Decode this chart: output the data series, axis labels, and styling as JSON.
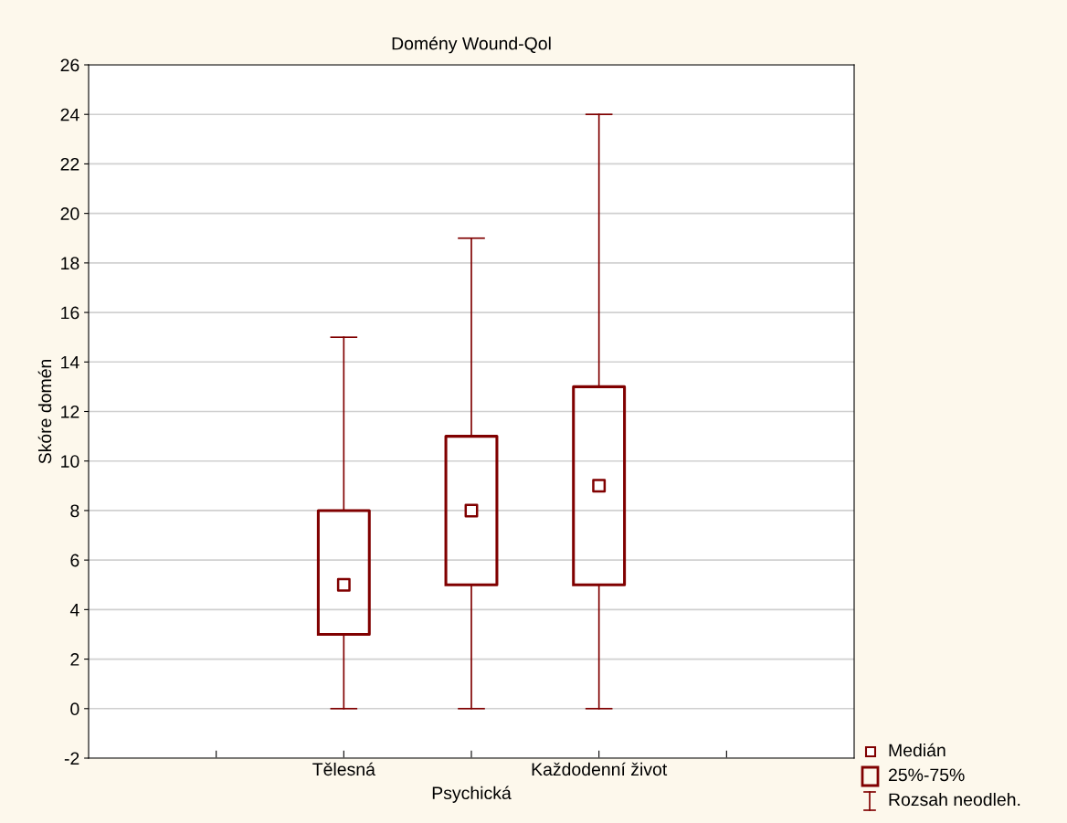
{
  "chart_data": {
    "type": "box",
    "title": "Domény Wound-Qol",
    "ylabel": "Skóre domén",
    "categories": [
      null,
      "Tělesná",
      "Psychická",
      "Každodenní život",
      null
    ],
    "series": [
      {
        "color": "#800000",
        "boxes": [
          null,
          {
            "low": 0,
            "q1": 3,
            "median": 5,
            "q3": 8,
            "high": 15
          },
          {
            "low": 0,
            "q1": 5,
            "median": 8,
            "q3": 11,
            "high": 19
          },
          {
            "low": 0,
            "q1": 5,
            "median": 9,
            "q3": 13,
            "high": 24
          },
          null
        ]
      }
    ],
    "ylim": [
      -2,
      26
    ],
    "yticks": [
      -2,
      0,
      2,
      4,
      6,
      8,
      10,
      12,
      14,
      16,
      18,
      20,
      22,
      24,
      26
    ],
    "grid": "y",
    "marker": "square",
    "annotations": [
      "Medián",
      "25%-75%",
      "Rozsah neodleh."
    ]
  }
}
